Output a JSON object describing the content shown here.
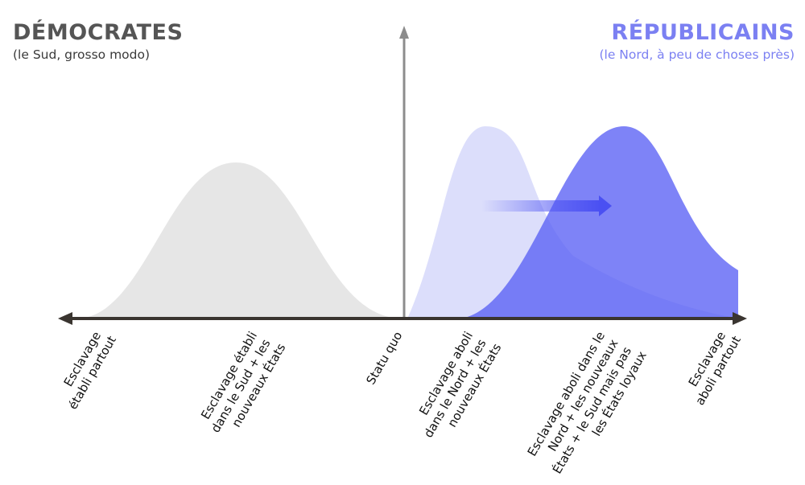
{
  "democrats": {
    "title": "DÉMOCRATES",
    "subtitle": "(le Sud, grosso modo)",
    "color": "#e6e6e6"
  },
  "republicans": {
    "title": "RÉPUBLICAINS",
    "subtitle": "(le Nord, à peu de choses près)",
    "color": "#7a80f8",
    "light_color": "#dcdefb"
  },
  "axis": {
    "color": "#3a3530",
    "labels": [
      [
        "Esclavage",
        "établi partout"
      ],
      [
        "Esclavage établi",
        "dans le Sud + les",
        "nouveaux États"
      ],
      [
        "Statu quo"
      ],
      [
        "Esclavage aboli",
        "dans le Nord + les",
        "nouveaux États"
      ],
      [
        "Esclavage aboli dans le",
        "Nord + les nouveaux",
        "États + le Sud mais pas",
        "les États loyaux"
      ],
      [
        "Esclavage",
        "aboli partout"
      ]
    ]
  }
}
